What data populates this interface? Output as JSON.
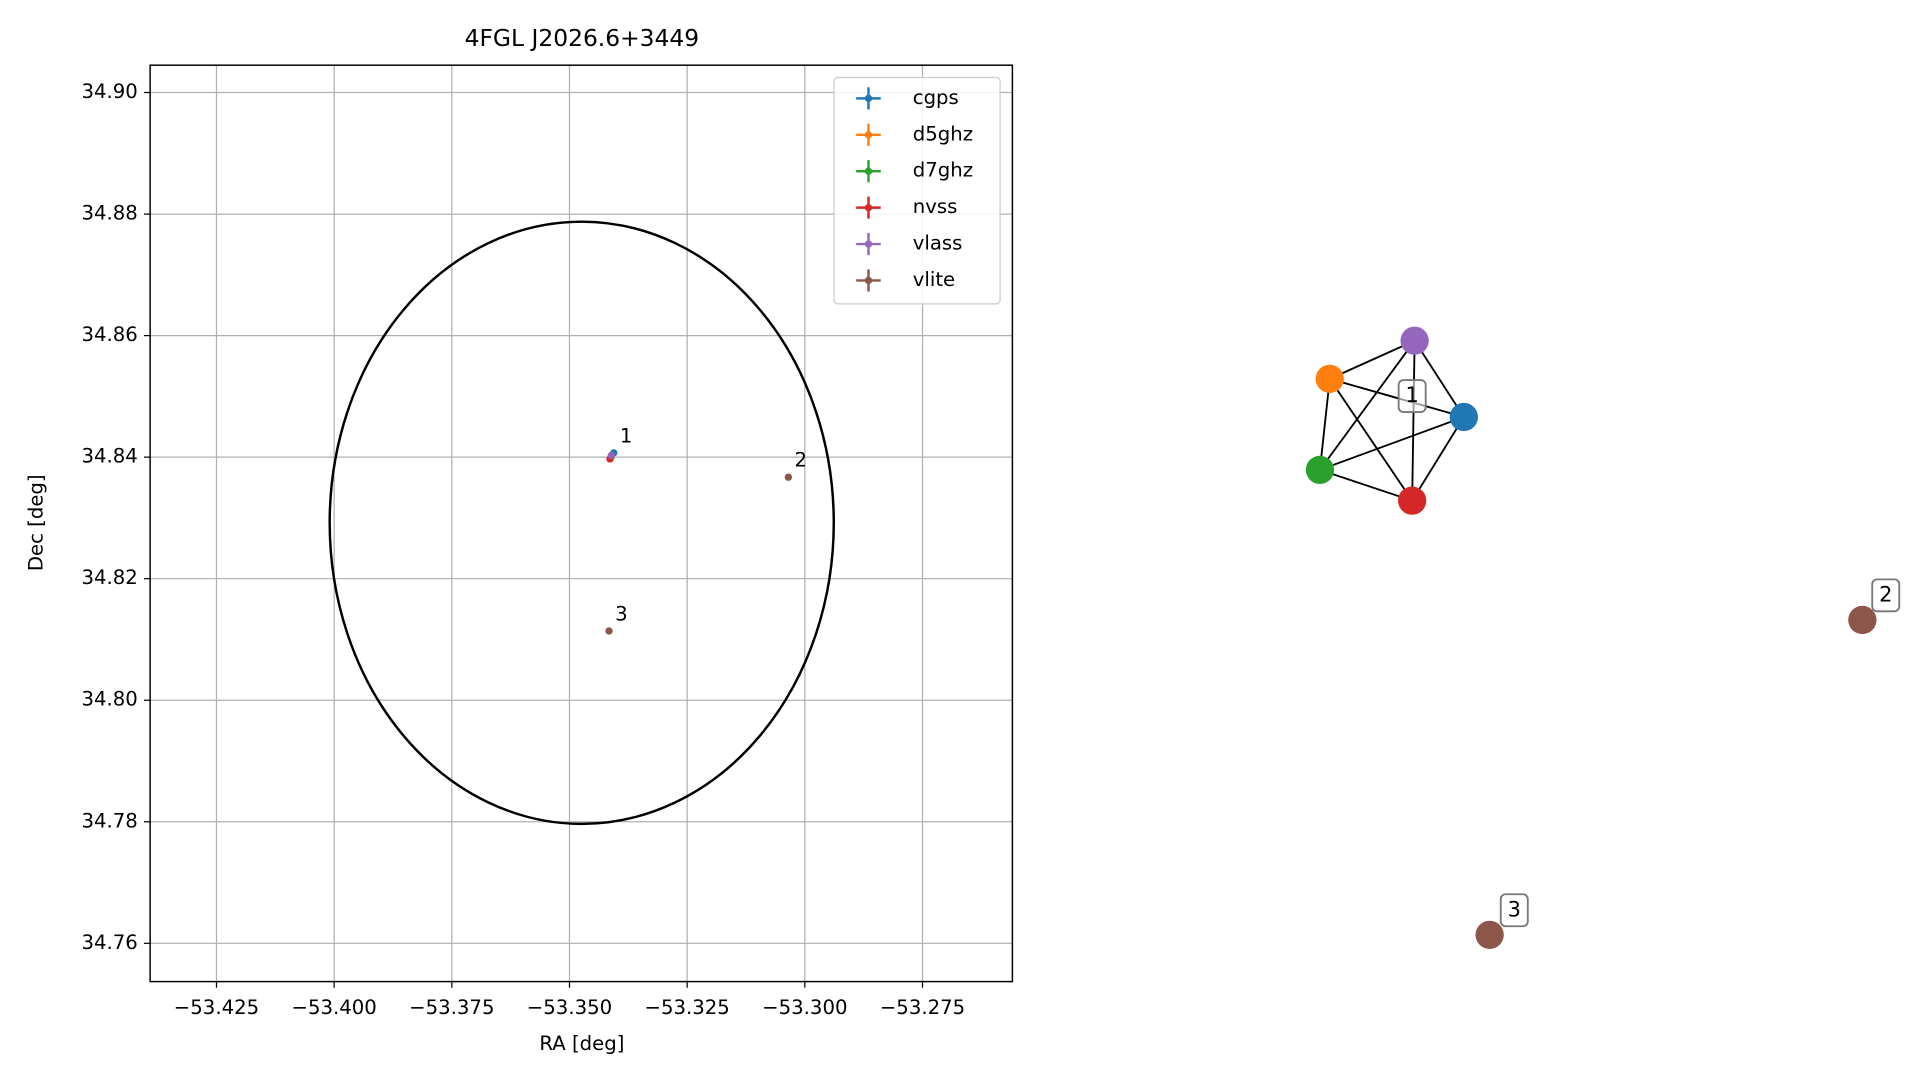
{
  "chart_data": {
    "type": "scatter",
    "title": "4FGL J2026.6+3449",
    "x_label": "RA [deg]",
    "y_label": "Dec [deg]",
    "xlim": [
      -53.4391,
      -53.2559
    ],
    "ylim": [
      34.7537,
      34.9045
    ],
    "xticks": [
      {
        "value": -53.425,
        "label": "−53.425"
      },
      {
        "value": -53.4,
        "label": "−53.400"
      },
      {
        "value": -53.375,
        "label": "−53.375"
      },
      {
        "value": -53.35,
        "label": "−53.350"
      },
      {
        "value": -53.325,
        "label": "−53.325"
      },
      {
        "value": -53.3,
        "label": "−53.300"
      },
      {
        "value": -53.275,
        "label": "−53.275"
      }
    ],
    "yticks": [
      34.76,
      34.78,
      {
        "value": 34.8,
        "label": "34.80"
      },
      34.82,
      34.84,
      34.86,
      34.88,
      {
        "value": 34.9,
        "label": "34.90"
      }
    ],
    "grid": true,
    "legend": "upper right",
    "ellipse": {
      "center": [
        -53.3474,
        34.8292
      ],
      "width": 0.1071,
      "height": 0.0991,
      "color": "#000000"
    },
    "series": [
      {
        "name": "cgps",
        "color": "#1f77b4",
        "x": [
          -53.3406
        ],
        "y": [
          34.8407
        ]
      },
      {
        "name": "d5ghz",
        "color": "#ff7f0e",
        "x": [
          -53.3411
        ],
        "y": [
          34.8401
        ]
      },
      {
        "name": "d7ghz",
        "color": "#2ca02c",
        "x": [
          -53.3412
        ],
        "y": [
          34.84
        ]
      },
      {
        "name": "nvss",
        "color": "#d62728",
        "x": [
          -53.3414
        ],
        "y": [
          34.8397
        ]
      },
      {
        "name": "vlass",
        "color": "#9467bd",
        "x": [
          -53.3411
        ],
        "y": [
          34.8403
        ]
      },
      {
        "name": "vlite",
        "color": "#8c564b",
        "x": [
          -53.3035,
          -53.3416
        ],
        "y": [
          34.8367,
          34.8114
        ]
      }
    ],
    "annotations": [
      {
        "text": "1",
        "x": -53.3406,
        "y": 34.8407
      },
      {
        "text": "2",
        "x": -53.3035,
        "y": 34.8367
      },
      {
        "text": "3",
        "x": -53.3416,
        "y": 34.8114
      }
    ]
  },
  "graph": {
    "clusters": [
      {
        "label": "1",
        "colors": [
          "#9467bd",
          "#ff7f0e",
          "#1f77b4",
          "#2ca02c",
          "#d62728"
        ]
      },
      {
        "label": "2",
        "colors": [
          "#8c564b"
        ]
      },
      {
        "label": "3",
        "colors": [
          "#8c564b"
        ]
      }
    ]
  }
}
